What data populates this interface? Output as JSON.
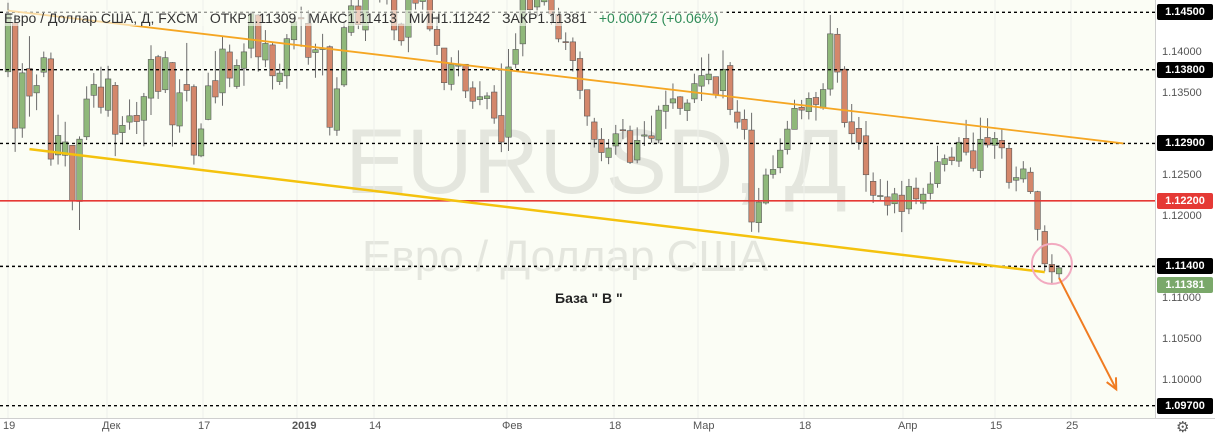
{
  "header": {
    "symbol": "Евро / Доллар США, Д, FXCM",
    "open": "ОТКР1.11309",
    "high": "МАКС1.11413",
    "low": "МИН1.11242",
    "close": "ЗАКР1.11381",
    "change": "+0.00072 (+0.06%)"
  },
  "watermark": {
    "ticker": "EURUSD, Д",
    "name": "Евро / Доллар США"
  },
  "annotation": "База  \" В \"",
  "colors": {
    "bull": "#8fb87a",
    "bear": "#d4876b",
    "orange_trend": "#f5a623",
    "yellow_trend": "#f4c20d",
    "red_level": "#e53935",
    "arrow": "#f07c22",
    "circle": "#f2aac0"
  },
  "chart_data": {
    "type": "candlestick",
    "symbol": "EURUSD",
    "timeframe": "Д",
    "ylim": [
      1.0955,
      1.1465
    ],
    "price_ticks": [
      "1.14000",
      "1.13500",
      "1.12500",
      "1.12000",
      "1.11000",
      "1.10500",
      "1.10000"
    ],
    "time_labels": [
      "19",
      "Дек",
      "17",
      "2019",
      "14",
      "Фев",
      "18",
      "Мар",
      "18",
      "Апр",
      "15",
      "25"
    ],
    "horizontal_levels": [
      {
        "value": 1.145,
        "label": "1.14500",
        "style": "dashed",
        "color": "#000000"
      },
      {
        "value": 1.138,
        "label": "1.13800",
        "style": "dashed",
        "color": "#000000"
      },
      {
        "value": 1.129,
        "label": "1.12900",
        "style": "dashed",
        "color": "#000000"
      },
      {
        "value": 1.122,
        "label": "1.12200",
        "style": "solid",
        "color": "#e53935"
      },
      {
        "value": 1.114,
        "label": "1.11400",
        "style": "dashed",
        "color": "#000000"
      },
      {
        "value": 1.097,
        "label": "1.09700",
        "style": "dashed",
        "color": "#000000"
      }
    ],
    "last_price": {
      "value": 1.11381,
      "label": "1.11381"
    },
    "trendlines": [
      {
        "name": "orange",
        "from": {
          "index": 0,
          "price": 1.1452
        },
        "to": {
          "index": 156,
          "price": 1.129
        }
      },
      {
        "name": "yellow",
        "from": {
          "index": 3,
          "price": 1.1283
        },
        "to": {
          "index": 145,
          "price": 1.1133
        }
      }
    ],
    "arrow": {
      "from": {
        "index": 147,
        "price": 1.1126
      },
      "to": {
        "index": 155,
        "price": 1.099
      }
    },
    "circle": {
      "index": 146,
      "price": 1.1143
    },
    "candles": [
      [
        1.13774,
        1.14616,
        1.13709,
        1.14483
      ],
      [
        1.14375,
        1.14475,
        1.12797,
        1.13086
      ],
      [
        1.13087,
        1.13879,
        1.12969,
        1.13761
      ],
      [
        1.13814,
        1.14209,
        1.13227,
        1.13478
      ],
      [
        1.13517,
        1.13742,
        1.13306,
        1.13607
      ],
      [
        1.13769,
        1.14021,
        1.13709,
        1.13946
      ],
      [
        1.13932,
        1.14009,
        1.12628,
        1.12709
      ],
      [
        1.1276,
        1.13251,
        1.12643,
        1.12997
      ],
      [
        1.12755,
        1.13164,
        1.12619,
        1.12918
      ],
      [
        1.12877,
        1.12878,
        1.12084,
        1.12196
      ],
      [
        1.12192,
        1.12986,
        1.11844,
        1.12952
      ],
      [
        1.12981,
        1.13597,
        1.12941,
        1.13442
      ],
      [
        1.13487,
        1.13758,
        1.13336,
        1.13619
      ],
      [
        1.13588,
        1.13836,
        1.13264,
        1.13341
      ],
      [
        1.13305,
        1.13847,
        1.13226,
        1.13687
      ],
      [
        1.13609,
        1.13649,
        1.12745,
        1.13012
      ],
      [
        1.13032,
        1.13233,
        1.12887,
        1.13121
      ],
      [
        1.1316,
        1.13437,
        1.13067,
        1.13237
      ],
      [
        1.13243,
        1.13406,
        1.13015,
        1.13167
      ],
      [
        1.13183,
        1.13516,
        1.12865,
        1.13472
      ],
      [
        1.13453,
        1.14098,
        1.13247,
        1.13925
      ],
      [
        1.13958,
        1.1398,
        1.13443,
        1.13534
      ],
      [
        1.13555,
        1.14025,
        1.13515,
        1.13947
      ],
      [
        1.13887,
        1.13892,
        1.12861,
        1.13126
      ],
      [
        1.13113,
        1.13683,
        1.13032,
        1.13518
      ],
      [
        1.1362,
        1.14126,
        1.13412,
        1.13546
      ],
      [
        1.13593,
        1.1362,
        1.12642,
        1.12757
      ],
      [
        1.12748,
        1.13145,
        1.12732,
        1.13077
      ],
      [
        1.13192,
        1.13763,
        1.13183,
        1.13603
      ],
      [
        1.13667,
        1.14027,
        1.13389,
        1.13467
      ],
      [
        1.13517,
        1.14213,
        1.1336,
        1.14052
      ],
      [
        1.14016,
        1.14106,
        1.13587,
        1.13697
      ],
      [
        1.13595,
        1.13926,
        1.13567,
        1.13852
      ],
      [
        1.13817,
        1.14121,
        1.13603,
        1.14017
      ],
      [
        1.14062,
        1.14508,
        1.1394,
        1.14485
      ],
      [
        1.14467,
        1.1448,
        1.13776,
        1.13956
      ],
      [
        1.13918,
        1.14283,
        1.13831,
        1.1412
      ],
      [
        1.14102,
        1.14125,
        1.13558,
        1.13725
      ],
      [
        1.13655,
        1.13873,
        1.13613,
        1.13758
      ],
      [
        1.13725,
        1.14234,
        1.13568,
        1.14178
      ],
      [
        1.14165,
        1.14437,
        1.14047,
        1.14384
      ],
      [
        1.14436,
        1.14569,
        1.14079,
        1.1442
      ],
      [
        1.14366,
        1.14527,
        1.1386,
        1.1395
      ],
      [
        1.14009,
        1.14117,
        1.13701,
        1.14044
      ],
      [
        1.14045,
        1.14237,
        1.1373,
        1.14065
      ],
      [
        1.1408,
        1.14096,
        1.12997,
        1.13097
      ],
      [
        1.13061,
        1.13708,
        1.12993,
        1.13566
      ],
      [
        1.13614,
        1.1437,
        1.13589,
        1.14313
      ],
      [
        1.14255,
        1.14725,
        1.14212,
        1.14579
      ],
      [
        1.14577,
        1.14716,
        1.14295,
        1.14349
      ],
      [
        1.14284,
        1.14925,
        1.14149,
        1.14784
      ],
      [
        1.14756,
        1.1513,
        1.14665,
        1.14787
      ],
      [
        1.14764,
        1.14955,
        1.14619,
        1.14923
      ],
      [
        1.14904,
        1.14916,
        1.14595,
        1.14675
      ],
      [
        1.14706,
        1.14727,
        1.1416,
        1.14284
      ],
      [
        1.14357,
        1.14373,
        1.14093,
        1.14152
      ],
      [
        1.14196,
        1.15003,
        1.14013,
        1.14755
      ],
      [
        1.14836,
        1.14926,
        1.14533,
        1.14611
      ],
      [
        1.14631,
        1.14823,
        1.14532,
        1.14766
      ],
      [
        1.14712,
        1.14759,
        1.14269,
        1.14296
      ],
      [
        1.14292,
        1.14455,
        1.13981,
        1.14094
      ],
      [
        1.14064,
        1.14064,
        1.1355,
        1.13641
      ],
      [
        1.13621,
        1.13952,
        1.13547,
        1.13864
      ],
      [
        1.13843,
        1.14036,
        1.13719,
        1.13866
      ],
      [
        1.13866,
        1.13869,
        1.13454,
        1.1354
      ],
      [
        1.13578,
        1.13658,
        1.13322,
        1.13415
      ],
      [
        1.13435,
        1.13659,
        1.13366,
        1.1347
      ],
      [
        1.13447,
        1.13524,
        1.13317,
        1.1348
      ],
      [
        1.13527,
        1.13611,
        1.1314,
        1.13209
      ],
      [
        1.13241,
        1.13876,
        1.12794,
        1.12917
      ],
      [
        1.12976,
        1.14052,
        1.12808,
        1.13833
      ],
      [
        1.13866,
        1.14244,
        1.13814,
        1.14047
      ],
      [
        1.14115,
        1.15136,
        1.13963,
        1.14843
      ],
      [
        1.14934,
        1.14946,
        1.14492,
        1.14532
      ],
      [
        1.14565,
        1.14765,
        1.14453,
        1.14666
      ],
      [
        1.14628,
        1.15008,
        1.14582,
        1.14756
      ],
      [
        1.14747,
        1.14878,
        1.14348,
        1.14481
      ],
      [
        1.14473,
        1.14555,
        1.14134,
        1.14175
      ],
      [
        1.14142,
        1.14255,
        1.1404,
        1.14132
      ],
      [
        1.14139,
        1.14193,
        1.13778,
        1.13911
      ],
      [
        1.13937,
        1.14022,
        1.1344,
        1.13548
      ],
      [
        1.13555,
        1.13556,
        1.13115,
        1.13234
      ],
      [
        1.13162,
        1.13212,
        1.1285,
        1.1295
      ],
      [
        1.12951,
        1.13087,
        1.12683,
        1.12789
      ],
      [
        1.12729,
        1.12954,
        1.12647,
        1.12844
      ],
      [
        1.12869,
        1.13126,
        1.12762,
        1.13018
      ],
      [
        1.13067,
        1.13198,
        1.12952,
        1.13063
      ],
      [
        1.13056,
        1.13117,
        1.1265,
        1.12669
      ],
      [
        1.12698,
        1.13096,
        1.12658,
        1.12938
      ],
      [
        1.12989,
        1.13172,
        1.12869,
        1.13004
      ],
      [
        1.12993,
        1.13239,
        1.12908,
        1.12961
      ],
      [
        1.12942,
        1.13362,
        1.12903,
        1.13306
      ],
      [
        1.13292,
        1.13544,
        1.13078,
        1.13366
      ],
      [
        1.13394,
        1.13632,
        1.13321,
        1.13444
      ],
      [
        1.13469,
        1.13477,
        1.13249,
        1.13327
      ],
      [
        1.13301,
        1.13439,
        1.13174,
        1.13393
      ],
      [
        1.13443,
        1.13751,
        1.13393,
        1.1363
      ],
      [
        1.13599,
        1.1395,
        1.13418,
        1.13728
      ],
      [
        1.13677,
        1.13994,
        1.13621,
        1.13746
      ],
      [
        1.13714,
        1.13717,
        1.13451,
        1.13496
      ],
      [
        1.13543,
        1.14036,
        1.1345,
        1.13805
      ],
      [
        1.13851,
        1.13893,
        1.13246,
        1.13314
      ],
      [
        1.13283,
        1.13428,
        1.13081,
        1.1316
      ],
      [
        1.13195,
        1.13314,
        1.12947,
        1.1307
      ],
      [
        1.13063,
        1.13274,
        1.11821,
        1.11941
      ],
      [
        1.11933,
        1.12357,
        1.11814,
        1.12185
      ],
      [
        1.12173,
        1.12593,
        1.12154,
        1.12515
      ],
      [
        1.12523,
        1.12755,
        1.12471,
        1.12583
      ],
      [
        1.12603,
        1.12962,
        1.12537,
        1.12818
      ],
      [
        1.12825,
        1.13175,
        1.12765,
        1.13075
      ],
      [
        1.13072,
        1.13433,
        1.13072,
        1.13328
      ],
      [
        1.13341,
        1.13431,
        1.13195,
        1.13306
      ],
      [
        1.13288,
        1.13523,
        1.13193,
        1.1345
      ],
      [
        1.13461,
        1.13528,
        1.13179,
        1.13375
      ],
      [
        1.13331,
        1.13635,
        1.13311,
        1.13558
      ],
      [
        1.13563,
        1.14468,
        1.13483,
        1.14237
      ],
      [
        1.14232,
        1.14308,
        1.13641,
        1.13771
      ],
      [
        1.13806,
        1.13842,
        1.13095,
        1.13154
      ],
      [
        1.13164,
        1.13381,
        1.12889,
        1.13018
      ],
      [
        1.13084,
        1.13223,
        1.12823,
        1.12913
      ],
      [
        1.12993,
        1.13173,
        1.1231,
        1.12518
      ],
      [
        1.12438,
        1.12546,
        1.12173,
        1.12267
      ],
      [
        1.12261,
        1.12465,
        1.12194,
        1.12264
      ],
      [
        1.12248,
        1.12445,
        1.12021,
        1.12146
      ],
      [
        1.12164,
        1.12357,
        1.12048,
        1.12285
      ],
      [
        1.12269,
        1.12443,
        1.11818,
        1.12069
      ],
      [
        1.12101,
        1.12467,
        1.12038,
        1.12375
      ],
      [
        1.12355,
        1.12483,
        1.12159,
        1.12223
      ],
      [
        1.12171,
        1.12358,
        1.12093,
        1.12281
      ],
      [
        1.12291,
        1.12549,
        1.12215,
        1.12405
      ],
      [
        1.12409,
        1.12872,
        1.12359,
        1.12677
      ],
      [
        1.12643,
        1.12765,
        1.12558,
        1.12714
      ],
      [
        1.12734,
        1.12853,
        1.12635,
        1.12691
      ],
      [
        1.12684,
        1.12977,
        1.12613,
        1.12915
      ],
      [
        1.12962,
        1.13188,
        1.12754,
        1.12793
      ],
      [
        1.1281,
        1.13033,
        1.12558,
        1.12597
      ],
      [
        1.12569,
        1.13215,
        1.12479,
        1.12951
      ],
      [
        1.12973,
        1.13208,
        1.12849,
        1.12881
      ],
      [
        1.12878,
        1.13039,
        1.12712,
        1.12962
      ],
      [
        1.12938,
        1.13074,
        1.12714,
        1.12846
      ],
      [
        1.12841,
        1.1289,
        1.12349,
        1.12425
      ],
      [
        1.12451,
        1.12618,
        1.12316,
        1.12484
      ],
      [
        1.12467,
        1.12684,
        1.12421,
        1.12589
      ],
      [
        1.12549,
        1.12608,
        1.12285,
        1.12312
      ],
      [
        1.12312,
        1.12322,
        1.11716,
        1.11852
      ],
      [
        1.11826,
        1.11901,
        1.11339,
        1.11431
      ],
      [
        1.11424,
        1.11548,
        1.11178,
        1.11333
      ],
      [
        1.11309,
        1.11413,
        1.11242,
        1.11381
      ]
    ]
  }
}
